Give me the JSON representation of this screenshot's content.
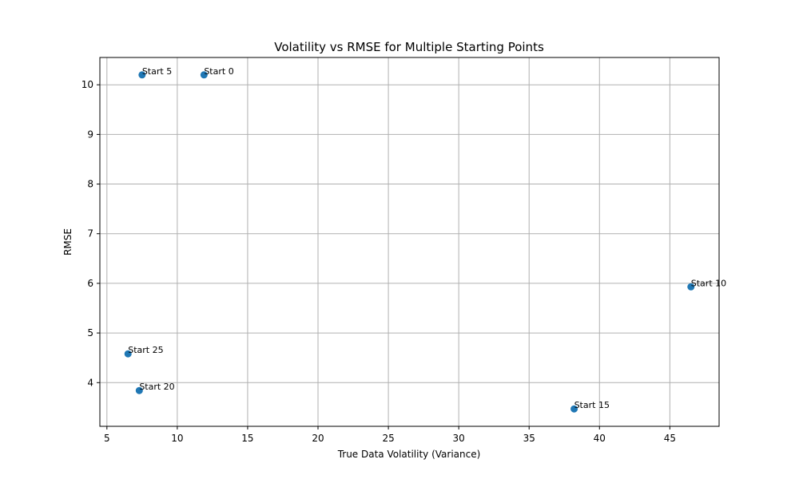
{
  "chart_data": {
    "type": "scatter",
    "title": "Volatility vs RMSE for Multiple Starting Points",
    "xlabel": "True Data Volatility (Variance)",
    "ylabel": "RMSE",
    "xlim": [
      4.5,
      48.5
    ],
    "ylim": [
      3.12,
      10.55
    ],
    "xticks": [
      5,
      10,
      15,
      20,
      25,
      30,
      35,
      40,
      45
    ],
    "yticks": [
      4,
      5,
      6,
      7,
      8,
      9,
      10
    ],
    "grid": true,
    "marker_color": "#1f77b4",
    "points": [
      {
        "label": "Start 0",
        "x": 11.9,
        "y": 10.2
      },
      {
        "label": "Start 5",
        "x": 7.5,
        "y": 10.2
      },
      {
        "label": "Start 10",
        "x": 46.5,
        "y": 5.93
      },
      {
        "label": "Start 15",
        "x": 38.2,
        "y": 3.47
      },
      {
        "label": "Start 20",
        "x": 7.3,
        "y": 3.84
      },
      {
        "label": "Start 25",
        "x": 6.5,
        "y": 4.58
      }
    ]
  }
}
